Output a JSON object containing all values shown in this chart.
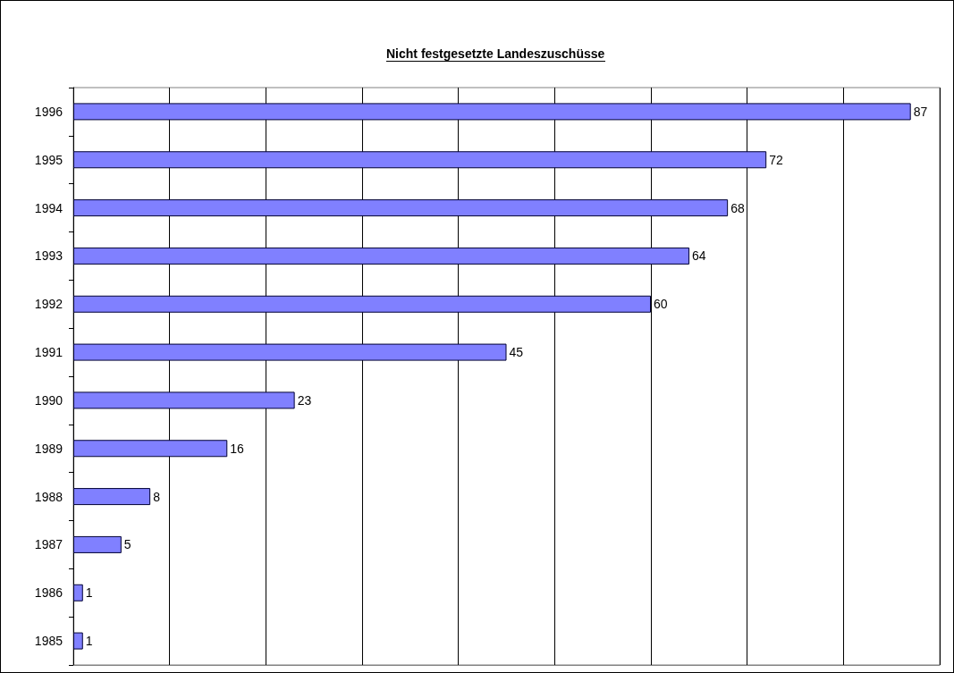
{
  "chart_data": {
    "type": "bar",
    "orientation": "horizontal",
    "title": "Nicht festgesetzte Landeszuschüsse",
    "categories": [
      "1996",
      "1995",
      "1994",
      "1993",
      "1992",
      "1991",
      "1990",
      "1989",
      "1988",
      "1987",
      "1986",
      "1985"
    ],
    "values": [
      87,
      72,
      68,
      64,
      60,
      45,
      23,
      16,
      8,
      5,
      1,
      1
    ],
    "color": "#8080ff",
    "xlim": [
      0,
      90
    ],
    "xticks": [
      {
        "value": 0,
        "label": null
      },
      {
        "value": 10,
        "label": null
      },
      {
        "value": 20,
        "label": null
      },
      {
        "value": 30,
        "label": null
      },
      {
        "value": 40,
        "label": null
      },
      {
        "value": 50,
        "label": null
      },
      {
        "value": 60,
        "label": null
      },
      {
        "value": 70,
        "label": null
      },
      {
        "value": 80,
        "label": null
      },
      {
        "value": 90,
        "label": null
      }
    ],
    "tick_labels": "y",
    "grid": "x",
    "data_labels": true
  }
}
